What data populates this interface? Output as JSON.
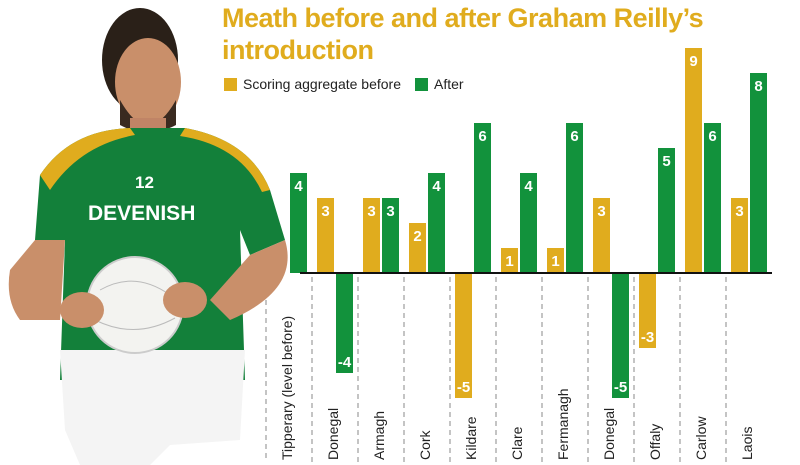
{
  "chart_data": {
    "type": "bar",
    "title": "Meath before and after Graham Reilly’s introduction",
    "legend": [
      {
        "label": "Scoring aggregate before",
        "color": "#E0AC1E"
      },
      {
        "label": "After",
        "color": "#12923C"
      }
    ],
    "legend_placement": "top",
    "categories": [
      "Tipperary (level before)",
      "Donegal",
      "Armagh",
      "Cork",
      "Kildare",
      "Clare",
      "Fermanagh",
      "Donegal",
      "Offaly",
      "Carlow",
      "Laois"
    ],
    "series": [
      {
        "name": "Scoring aggregate before",
        "color": "#E0AC1E",
        "values": [
          0,
          3,
          3,
          2,
          -5,
          1,
          1,
          3,
          -3,
          9,
          3
        ]
      },
      {
        "name": "After",
        "color": "#12923C",
        "values": [
          4,
          -4,
          3,
          4,
          6,
          4,
          6,
          -5,
          5,
          6,
          8
        ]
      }
    ],
    "ylim": [
      -6,
      9.5
    ],
    "xlabel": "",
    "ylabel": "",
    "grid": false
  }
}
